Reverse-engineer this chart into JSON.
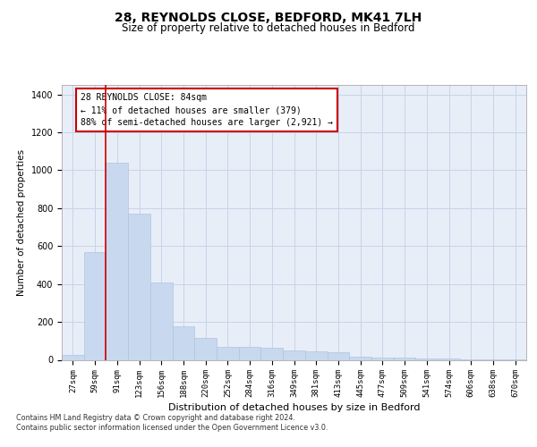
{
  "title": "28, REYNOLDS CLOSE, BEDFORD, MK41 7LH",
  "subtitle": "Size of property relative to detached houses in Bedford",
  "xlabel": "Distribution of detached houses by size in Bedford",
  "ylabel": "Number of detached properties",
  "footer_line1": "Contains HM Land Registry data © Crown copyright and database right 2024.",
  "footer_line2": "Contains public sector information licensed under the Open Government Licence v3.0.",
  "annotation_line1": "28 REYNOLDS CLOSE: 84sqm",
  "annotation_line2": "← 11% of detached houses are smaller (379)",
  "annotation_line3": "88% of semi-detached houses are larger (2,921) →",
  "bar_color": "#c8d8ee",
  "bar_edge_color": "#b0c4de",
  "redline_color": "#cc0000",
  "annotation_box_edgecolor": "#cc0000",
  "background_color": "#ffffff",
  "axes_facecolor": "#e8eef8",
  "grid_color": "#c8d4e8",
  "bins": [
    "27sqm",
    "59sqm",
    "91sqm",
    "123sqm",
    "156sqm",
    "188sqm",
    "220sqm",
    "252sqm",
    "284sqm",
    "316sqm",
    "349sqm",
    "381sqm",
    "413sqm",
    "445sqm",
    "477sqm",
    "509sqm",
    "541sqm",
    "574sqm",
    "606sqm",
    "638sqm",
    "670sqm"
  ],
  "values": [
    28,
    570,
    1040,
    770,
    410,
    175,
    115,
    70,
    68,
    65,
    48,
    45,
    40,
    17,
    14,
    13,
    9,
    6,
    4,
    2,
    1
  ],
  "ylim": [
    0,
    1450
  ],
  "yticks": [
    0,
    200,
    400,
    600,
    800,
    1000,
    1200,
    1400
  ],
  "redline_x": 1.5,
  "title_fontsize": 10,
  "subtitle_fontsize": 8.5,
  "ylabel_fontsize": 7.5,
  "xlabel_fontsize": 8,
  "tick_fontsize": 6.5,
  "annotation_fontsize": 7,
  "footer_fontsize": 5.8
}
